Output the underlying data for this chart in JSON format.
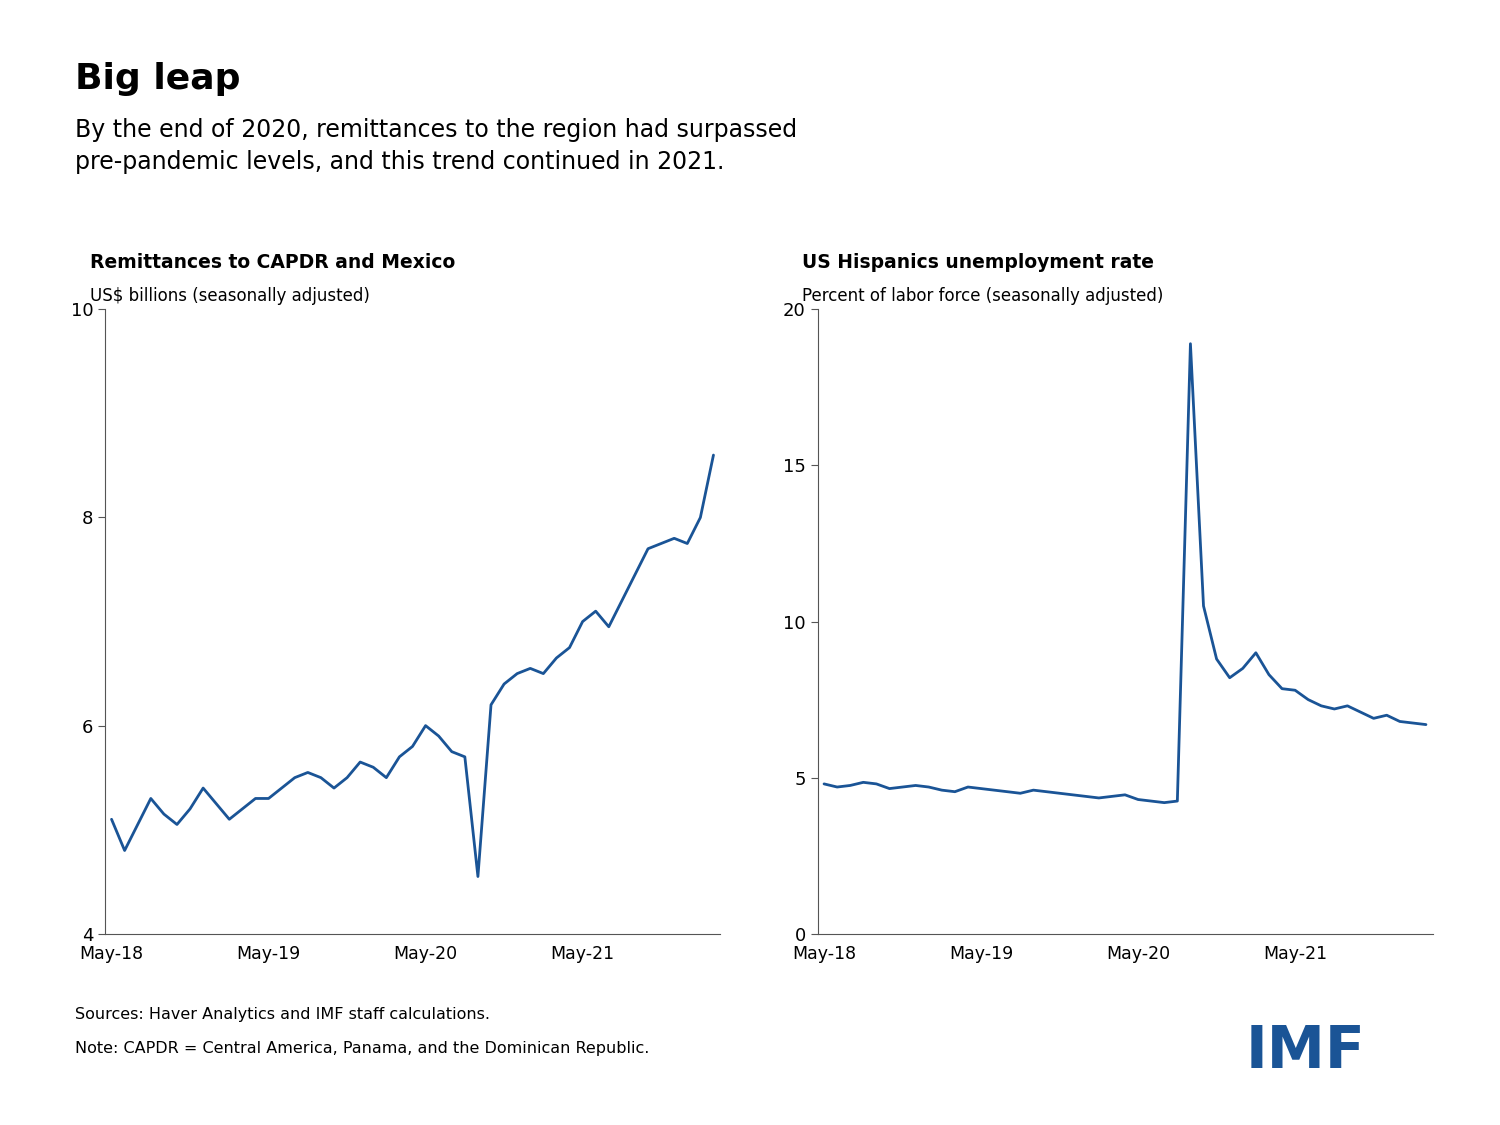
{
  "title_bold": "Big leap",
  "title_sub": "By the end of 2020, remittances to the region had surpassed\npre-pandemic levels, and this trend continued in 2021.",
  "chart1_title": "Remittances to CAPDR and Mexico",
  "chart1_sub": "US$ billions (seasonally adjusted)",
  "chart2_title": "US Hispanics unemployment rate",
  "chart2_sub": "Percent of labor force (seasonally adjusted)",
  "footnote1": "Sources: Haver Analytics and IMF staff calculations.",
  "footnote2": "Note: CAPDR = Central America, Panama, and the Dominican Republic.",
  "line_color": "#1a5496",
  "line_width": 2.0,
  "background_color": "#ffffff",
  "chart1_ylim": [
    4,
    10
  ],
  "chart1_yticks": [
    4,
    6,
    8,
    10
  ],
  "chart2_ylim": [
    0,
    20
  ],
  "chart2_yticks": [
    0,
    5,
    10,
    15,
    20
  ],
  "x_tick_labels": [
    "May-18",
    "May-19",
    "May-20",
    "May-21"
  ],
  "remittances": [
    5.1,
    4.8,
    5.05,
    5.3,
    5.15,
    5.05,
    5.2,
    5.4,
    5.25,
    5.1,
    5.2,
    5.3,
    5.3,
    5.4,
    5.5,
    5.55,
    5.5,
    5.4,
    5.5,
    5.65,
    5.6,
    5.5,
    5.7,
    5.8,
    6.0,
    5.9,
    5.75,
    5.7,
    4.55,
    6.2,
    6.4,
    6.5,
    6.55,
    6.5,
    6.65,
    6.75,
    7.0,
    7.1,
    6.95,
    7.2,
    7.45,
    7.7,
    7.75,
    7.8,
    7.75,
    8.0,
    8.6
  ],
  "unemployment": [
    4.8,
    4.7,
    4.75,
    4.85,
    4.8,
    4.65,
    4.7,
    4.75,
    4.7,
    4.6,
    4.55,
    4.7,
    4.65,
    4.6,
    4.55,
    4.5,
    4.6,
    4.55,
    4.5,
    4.45,
    4.4,
    4.35,
    4.4,
    4.45,
    4.3,
    4.25,
    4.2,
    4.25,
    18.9,
    10.5,
    8.8,
    8.2,
    8.5,
    9.0,
    8.3,
    7.85,
    7.8,
    7.5,
    7.3,
    7.2,
    7.3,
    7.1,
    6.9,
    7.0,
    6.8,
    6.75,
    6.7
  ],
  "imf_color": "#1a5496"
}
